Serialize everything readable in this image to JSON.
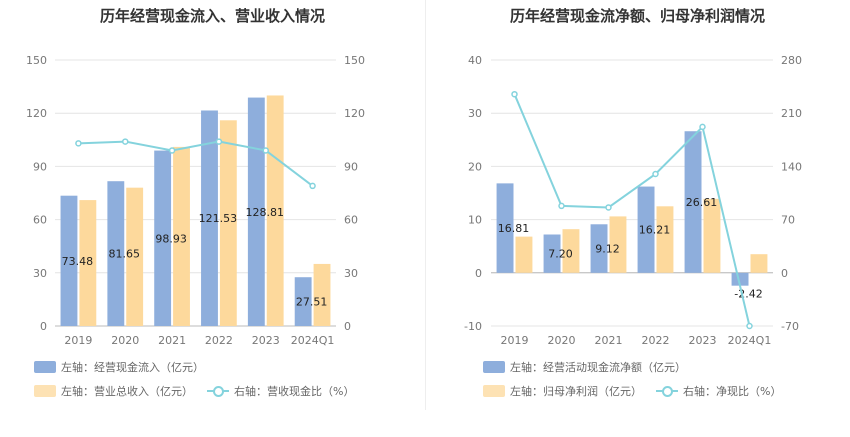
{
  "left": {
    "title": "历年经营现金流入、营业收入情况",
    "legend": {
      "bar1": "左轴：经营现金流入（亿元）",
      "bar2": "左轴：营业总收入（亿元）",
      "line": "右轴：营收现金比（%）"
    }
  },
  "right": {
    "title": "历年经营现金流净额、归母净利润情况",
    "legend": {
      "bar1": "左轴：经营活动现金流净额（亿元）",
      "bar2": "左轴：归母净利润（亿元）",
      "line": "右轴：净现比（%）"
    }
  },
  "colors": {
    "bar1": "#8eaedc",
    "bar2": "#fdd99c",
    "line": "#84d3dd",
    "grid": "#e4e4e4"
  },
  "chart_data": [
    {
      "type": "bar",
      "title": "历年经营现金流入、营业收入情况",
      "categories": [
        "2019",
        "2020",
        "2021",
        "2022",
        "2023",
        "2024Q1"
      ],
      "series": [
        {
          "name": "左轴：经营现金流入（亿元）",
          "axis": "left",
          "values": [
            73.48,
            81.65,
            98.93,
            121.53,
            128.81,
            27.51
          ],
          "labels": [
            "73.48",
            "81.65",
            "98.93",
            "121.53",
            "128.81",
            "27.51"
          ]
        },
        {
          "name": "左轴：营业总收入（亿元）",
          "axis": "left",
          "values": [
            71,
            78,
            101,
            116,
            130,
            35
          ]
        },
        {
          "name": "右轴：营收现金比（%）",
          "axis": "right",
          "type": "line",
          "values": [
            103,
            104,
            99,
            104,
            99,
            79
          ]
        }
      ],
      "yleft": {
        "min": 0,
        "max": 150,
        "ticks": [
          0,
          30,
          60,
          90,
          120,
          150
        ]
      },
      "yright": {
        "min": 0,
        "max": 150,
        "ticks": [
          0,
          30,
          60,
          90,
          120,
          150
        ]
      },
      "grid": true,
      "legend_position": "bottom"
    },
    {
      "type": "bar",
      "title": "历年经营现金流净额、归母净利润情况",
      "categories": [
        "2019",
        "2020",
        "2021",
        "2022",
        "2023",
        "2024Q1"
      ],
      "series": [
        {
          "name": "左轴：经营活动现金流净额（亿元）",
          "axis": "left",
          "values": [
            16.81,
            7.2,
            9.12,
            16.21,
            26.61,
            -2.42
          ],
          "labels": [
            "16.81",
            "7.20",
            "9.12",
            "16.21",
            "26.61",
            "-2.42"
          ]
        },
        {
          "name": "左轴：归母净利润（亿元）",
          "axis": "left",
          "values": [
            6.8,
            8.2,
            10.6,
            12.5,
            13.9,
            3.5
          ]
        },
        {
          "name": "右轴：净现比（%）",
          "axis": "right",
          "type": "line",
          "values": [
            235,
            88,
            86,
            130,
            192,
            -70
          ]
        }
      ],
      "yleft": {
        "min": -10,
        "max": 40,
        "ticks": [
          -10,
          0,
          10,
          20,
          30,
          40
        ]
      },
      "yright": {
        "min": -70,
        "max": 280,
        "ticks": [
          -70,
          0,
          70,
          140,
          210,
          280
        ]
      },
      "grid": true,
      "legend_position": "bottom"
    }
  ]
}
